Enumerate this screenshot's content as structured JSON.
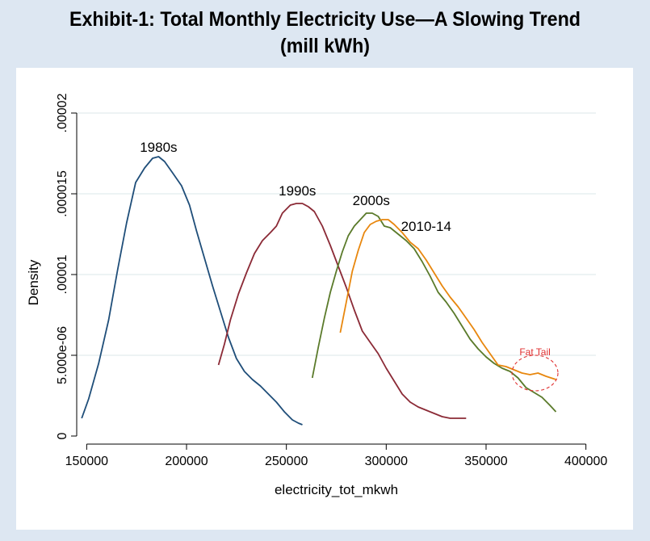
{
  "chart_data": {
    "type": "line",
    "title": "Exhibit-1: Total Monthly Electricity Use—A Slowing Trend",
    "subtitle": "(mill kWh)",
    "xlabel": "electricity_tot_mkwh",
    "ylabel": "Density",
    "xlim": [
      145000,
      405000
    ],
    "ylim": [
      0,
      2e-05
    ],
    "xticks": [
      150000,
      200000,
      250000,
      300000,
      350000,
      400000
    ],
    "xtick_labels": [
      "150000",
      "200000",
      "250000",
      "300000",
      "350000",
      "400000"
    ],
    "yticks": [
      0,
      5e-06,
      1e-05,
      1.5e-05,
      2e-05
    ],
    "ytick_labels": [
      "0",
      "5.000e-06",
      ".00001",
      ".000015",
      ".00002"
    ],
    "grid": true,
    "legend": "none",
    "series": [
      {
        "name": "1980s",
        "color": "#1f4e79",
        "points": [
          [
            147500,
            1.1e-06
          ],
          [
            151000,
            2.3e-06
          ],
          [
            156000,
            4.5e-06
          ],
          [
            161000,
            7.2e-06
          ],
          [
            165500,
            1.03e-05
          ],
          [
            170000,
            1.32e-05
          ],
          [
            174500,
            1.57e-05
          ],
          [
            179000,
            1.66e-05
          ],
          [
            183000,
            1.72e-05
          ],
          [
            186000,
            1.73e-05
          ],
          [
            189000,
            1.7e-05
          ],
          [
            193000,
            1.63e-05
          ],
          [
            197500,
            1.55e-05
          ],
          [
            201500,
            1.43e-05
          ],
          [
            205000,
            1.27e-05
          ],
          [
            209000,
            1.1e-05
          ],
          [
            213000,
            9.3e-06
          ],
          [
            217000,
            7.7e-06
          ],
          [
            221000,
            6.1e-06
          ],
          [
            225000,
            4.8e-06
          ],
          [
            229000,
            4e-06
          ],
          [
            233000,
            3.5e-06
          ],
          [
            237000,
            3.1e-06
          ],
          [
            241000,
            2.6e-06
          ],
          [
            245000,
            2.1e-06
          ],
          [
            249000,
            1.5e-06
          ],
          [
            253000,
            1e-06
          ],
          [
            256000,
            8e-07
          ],
          [
            258000,
            7e-07
          ]
        ]
      },
      {
        "name": "1990s",
        "color": "#8b2a36",
        "points": [
          [
            216000,
            4.4e-06
          ],
          [
            219000,
            5.7e-06
          ],
          [
            222000,
            7.2e-06
          ],
          [
            226000,
            8.8e-06
          ],
          [
            230000,
            1.01e-05
          ],
          [
            234000,
            1.13e-05
          ],
          [
            238000,
            1.21e-05
          ],
          [
            242000,
            1.26e-05
          ],
          [
            245000,
            1.3e-05
          ],
          [
            248000,
            1.38e-05
          ],
          [
            252000,
            1.43e-05
          ],
          [
            255000,
            1.44e-05
          ],
          [
            258000,
            1.44e-05
          ],
          [
            261000,
            1.42e-05
          ],
          [
            264000,
            1.39e-05
          ],
          [
            268000,
            1.3e-05
          ],
          [
            272000,
            1.18e-05
          ],
          [
            276000,
            1.05e-05
          ],
          [
            280000,
            9.2e-06
          ],
          [
            284000,
            7.8e-06
          ],
          [
            288000,
            6.5e-06
          ],
          [
            292000,
            5.8e-06
          ],
          [
            296000,
            5.1e-06
          ],
          [
            300000,
            4.2e-06
          ],
          [
            304000,
            3.4e-06
          ],
          [
            308000,
            2.6e-06
          ],
          [
            312000,
            2.1e-06
          ],
          [
            316000,
            1.8e-06
          ],
          [
            320000,
            1.6e-06
          ],
          [
            324000,
            1.4e-06
          ],
          [
            328000,
            1.2e-06
          ],
          [
            332000,
            1.1e-06
          ],
          [
            336000,
            1.1e-06
          ],
          [
            340000,
            1.1e-06
          ]
        ]
      },
      {
        "name": "2000s",
        "color": "#5a7a2a",
        "points": [
          [
            263000,
            3.6e-06
          ],
          [
            266000,
            5.5e-06
          ],
          [
            269000,
            7.3e-06
          ],
          [
            272000,
            8.9e-06
          ],
          [
            275000,
            1.02e-05
          ],
          [
            278000,
            1.14e-05
          ],
          [
            281000,
            1.24e-05
          ],
          [
            284000,
            1.3e-05
          ],
          [
            287000,
            1.34e-05
          ],
          [
            290000,
            1.38e-05
          ],
          [
            293000,
            1.38e-05
          ],
          [
            296000,
            1.36e-05
          ],
          [
            299000,
            1.3e-05
          ],
          [
            302000,
            1.29e-05
          ],
          [
            306000,
            1.25e-05
          ],
          [
            310000,
            1.21e-05
          ],
          [
            314000,
            1.16e-05
          ],
          [
            318000,
            1.08e-05
          ],
          [
            322000,
            9.9e-06
          ],
          [
            326000,
            8.9e-06
          ],
          [
            330000,
            8.3e-06
          ],
          [
            334000,
            7.6e-06
          ],
          [
            338000,
            6.8e-06
          ],
          [
            342000,
            6e-06
          ],
          [
            346000,
            5.4e-06
          ],
          [
            350000,
            4.9e-06
          ],
          [
            354000,
            4.5e-06
          ],
          [
            358000,
            4.2e-06
          ],
          [
            362000,
            4e-06
          ],
          [
            366000,
            3.6e-06
          ],
          [
            370000,
            3e-06
          ],
          [
            374000,
            2.7e-06
          ],
          [
            378000,
            2.4e-06
          ],
          [
            382000,
            1.9e-06
          ],
          [
            385000,
            1.5e-06
          ]
        ]
      },
      {
        "name": "2010-14",
        "color": "#e8870e",
        "points": [
          [
            277000,
            6.4e-06
          ],
          [
            280000,
            8.3e-06
          ],
          [
            283000,
            1.02e-05
          ],
          [
            286000,
            1.15e-05
          ],
          [
            289000,
            1.26e-05
          ],
          [
            292000,
            1.31e-05
          ],
          [
            295000,
            1.33e-05
          ],
          [
            298000,
            1.34e-05
          ],
          [
            301000,
            1.34e-05
          ],
          [
            304000,
            1.31e-05
          ],
          [
            308000,
            1.26e-05
          ],
          [
            312000,
            1.2e-05
          ],
          [
            316000,
            1.16e-05
          ],
          [
            320000,
            1.09e-05
          ],
          [
            324000,
            1.01e-05
          ],
          [
            328000,
            9.3e-06
          ],
          [
            332000,
            8.6e-06
          ],
          [
            336000,
            8e-06
          ],
          [
            340000,
            7.3e-06
          ],
          [
            344000,
            6.6e-06
          ],
          [
            348000,
            5.8e-06
          ],
          [
            352000,
            5.1e-06
          ],
          [
            356000,
            4.4e-06
          ],
          [
            360000,
            4.3e-06
          ],
          [
            364000,
            4.1e-06
          ],
          [
            368000,
            3.9e-06
          ],
          [
            372000,
            3.8e-06
          ],
          [
            376000,
            3.9e-06
          ],
          [
            380000,
            3.7e-06
          ],
          [
            385000,
            3.5e-06
          ]
        ]
      }
    ],
    "series_labels": [
      {
        "text": "1980s",
        "x": 186000,
        "y": 1.76e-05
      },
      {
        "text": "1990s",
        "x": 255500,
        "y": 1.49e-05
      },
      {
        "text": "2000s",
        "x": 292500,
        "y": 1.43e-05
      },
      {
        "text": "2010-14",
        "x": 320000,
        "y": 1.27e-05
      }
    ],
    "annotations": [
      {
        "text": "Fat Tail",
        "x": 374500,
        "y": 5e-06,
        "color": "#e03030",
        "shape": "dashed-ellipse",
        "center": [
          374500,
          3.9e-06
        ],
        "radius": [
          11500,
          1.1e-06
        ]
      }
    ]
  }
}
